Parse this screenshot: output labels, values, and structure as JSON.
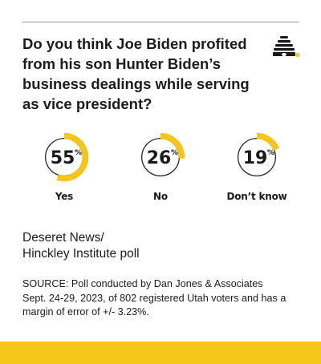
{
  "header": {
    "question": "Do you think Joe Biden profited from his son Hunter Biden’s business dealings while serving as vice president?",
    "logo_icon": "beehive-icon"
  },
  "chart_data": {
    "type": "pie",
    "style": "donut-progress",
    "categories": [
      "Yes",
      "No",
      "Don’t know"
    ],
    "values": [
      55,
      26,
      19
    ],
    "value_suffix": "%",
    "colors": {
      "fill": "#f5c518",
      "track": "#2a2a2a",
      "label": "#1a1a1a"
    }
  },
  "source": {
    "name": "Deseret News/\nHinckley Institute poll",
    "note": "SOURCE: Poll conducted by Dan Jones & Associates Sept. 24-29, 2023, of 802 registered Utah voters and has a margin of error of +/- 3.23%."
  },
  "colors": {
    "accent": "#f5c518",
    "rule": "#9a9a9a",
    "text": "#1c1c1c"
  }
}
